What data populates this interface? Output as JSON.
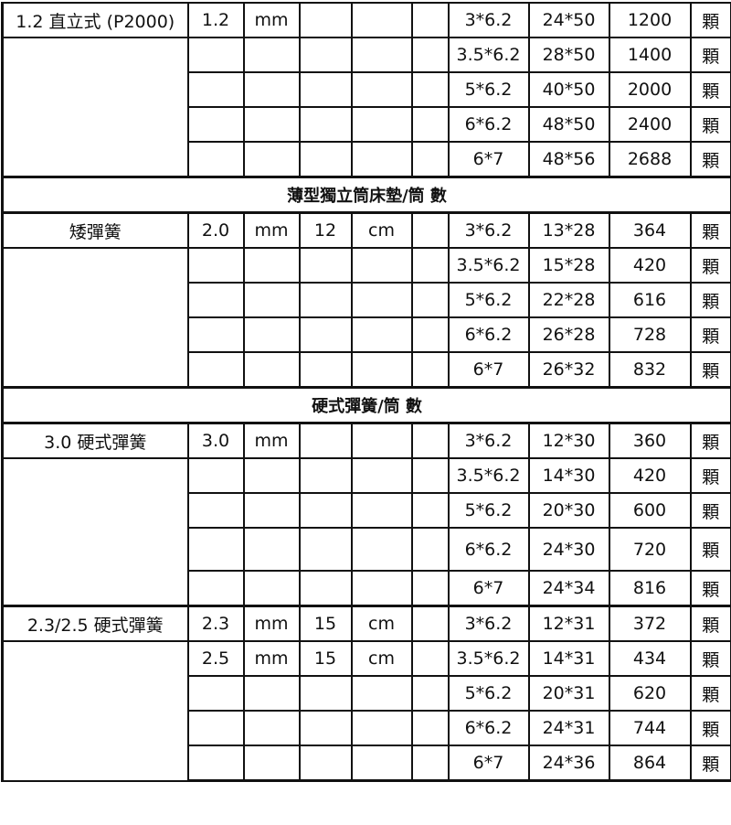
{
  "groups": [
    {
      "label": "1.2 直立式 (P2000)",
      "rows": [
        [
          "1.2",
          "mm",
          "",
          "",
          "",
          "3*6.2",
          "24*50",
          "1200",
          "顆"
        ],
        [
          "",
          "",
          "",
          "",
          "",
          "3.5*6.2",
          "28*50",
          "1400",
          "顆"
        ],
        [
          "",
          "",
          "",
          "",
          "",
          "5*6.2",
          "40*50",
          "2000",
          "顆"
        ],
        [
          "",
          "",
          "",
          "",
          "",
          "6*6.2",
          "48*50",
          "2400",
          "顆"
        ],
        [
          "",
          "",
          "",
          "",
          "",
          "6*7",
          "48*56",
          "2688",
          "顆"
        ]
      ]
    },
    {
      "title": "薄型獨立筒床墊/筒 數"
    },
    {
      "label": "矮彈簧",
      "rows": [
        [
          "2.0",
          "mm",
          "12",
          "cm",
          "",
          "3*6.2",
          "13*28",
          "364",
          "顆"
        ],
        [
          "",
          "",
          "",
          "",
          "",
          "3.5*6.2",
          "15*28",
          "420",
          "顆"
        ],
        [
          "",
          "",
          "",
          "",
          "",
          "5*6.2",
          "22*28",
          "616",
          "顆"
        ],
        [
          "",
          "",
          "",
          "",
          "",
          "6*6.2",
          "26*28",
          "728",
          "顆"
        ],
        [
          "",
          "",
          "",
          "",
          "",
          "6*7",
          "26*32",
          "832",
          "顆"
        ]
      ]
    },
    {
      "title": "硬式彈簧/筒 數"
    },
    {
      "label": "3.0 硬式彈簧",
      "rows": [
        [
          "3.0",
          "mm",
          "",
          "",
          "",
          "3*6.2",
          "12*30",
          "360",
          "顆"
        ],
        [
          "",
          "",
          "",
          "",
          "",
          "3.5*6.2",
          "14*30",
          "420",
          "顆"
        ],
        [
          "",
          "",
          "",
          "",
          "",
          "5*6.2",
          "20*30",
          "600",
          "顆"
        ],
        [
          "",
          "",
          "",
          "",
          "",
          "6*6.2",
          "24*30",
          "720",
          "顆"
        ],
        [
          "",
          "",
          "",
          "",
          "",
          "6*7",
          "24*34",
          "816",
          "顆"
        ]
      ]
    },
    {
      "label": "2.3/2.5 硬式彈簧",
      "rows": [
        [
          "2.3",
          "mm",
          "15",
          "cm",
          "",
          "3*6.2",
          "12*31",
          "372",
          "顆"
        ],
        [
          "2.5",
          "mm",
          "15",
          "cm",
          "",
          "3.5*6.2",
          "14*31",
          "434",
          "顆"
        ],
        [
          "",
          "",
          "",
          "",
          "",
          "5*6.2",
          "20*31",
          "620",
          "顆"
        ],
        [
          "",
          "",
          "",
          "",
          "",
          "6*6.2",
          "24*31",
          "744",
          "顆"
        ],
        [
          "",
          "",
          "",
          "",
          "",
          "6*7",
          "24*36",
          "864",
          "顆"
        ]
      ]
    }
  ]
}
